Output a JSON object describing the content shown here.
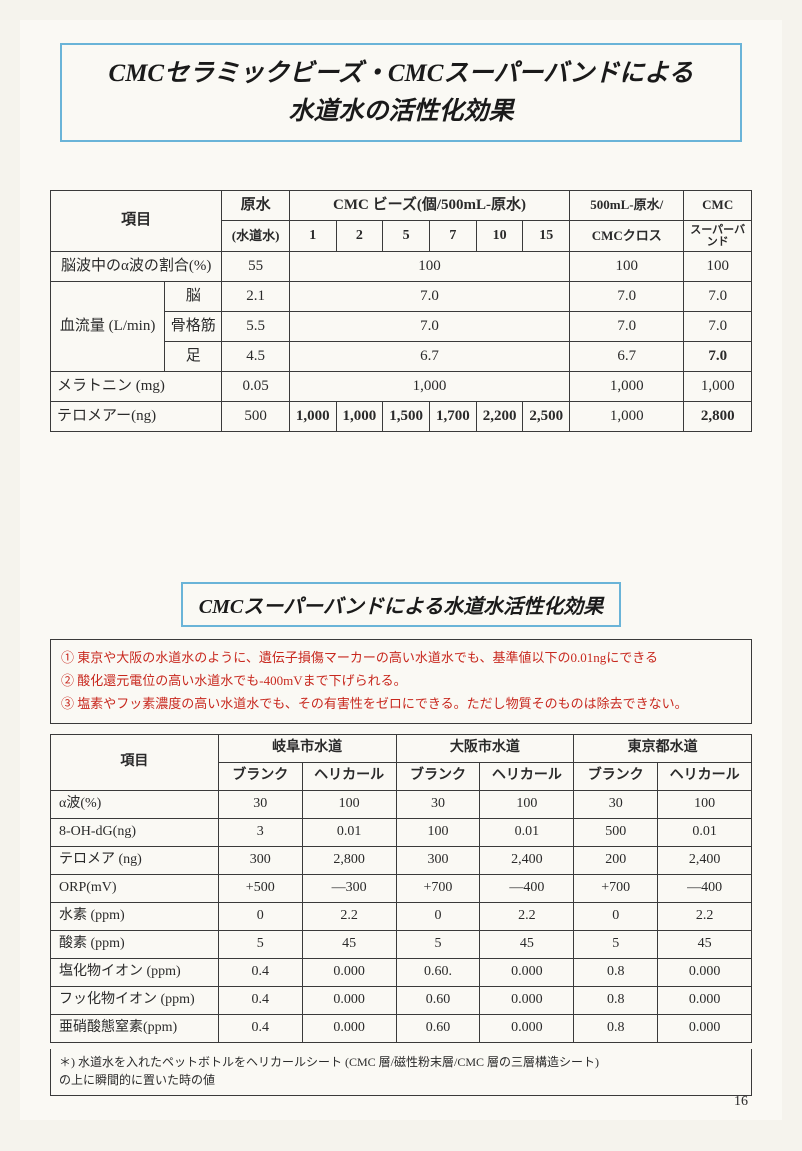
{
  "title": "CMCセラミックビーズ・CMCスーパーバンドによる\n水道水の活性化効果",
  "table1": {
    "headers": {
      "item": "項目",
      "raw": "原水",
      "raw_sub": "(水道水)",
      "beads": "CMC ビーズ(個/500mL-原水)",
      "bead_counts": [
        "1",
        "2",
        "5",
        "7",
        "10",
        "15"
      ],
      "cloth": "500mL-原水/",
      "cloth_sub": "CMCクロス",
      "band": "CMC",
      "band_sub": "スーパーバンド"
    },
    "rows": {
      "alpha": {
        "label": "脳波中のα波の割合(%)",
        "raw": "55",
        "beads_merged": "100",
        "cloth": "100",
        "band": "100"
      },
      "flow_label": "血流量 (L/min)",
      "flow_brain": {
        "sub": "脳",
        "raw": "2.1",
        "beads_merged": "7.0",
        "cloth": "7.0",
        "band": "7.0"
      },
      "flow_muscle": {
        "sub": "骨格筋",
        "raw": "5.5",
        "beads_merged": "7.0",
        "cloth": "7.0",
        "band": "7.0"
      },
      "flow_foot": {
        "sub": "足",
        "raw": "4.5",
        "beads_merged": "6.7",
        "cloth": "6.7",
        "band": "7.0"
      },
      "melatonin": {
        "label": "メラトニン (mg)",
        "raw": "0.05",
        "beads_merged": "1,000",
        "cloth": "1,000",
        "band": "1,000"
      },
      "telomere": {
        "label": "テロメアー(ng)",
        "raw": "500",
        "b1": "1,000",
        "b2": "1,000",
        "b5": "1,500",
        "b7": "1,700",
        "b10": "2,200",
        "b15": "2,500",
        "cloth": "1,000",
        "band": "2,800"
      }
    }
  },
  "subtitle": "CMCスーパーバンドによる水道水活性化効果",
  "notes": [
    "① 東京や大阪の水道水のように、遺伝子損傷マーカーの高い水道水でも、基準値以下の0.01ngにできる",
    "② 酸化還元電位の高い水道水でも-400mVまで下げられる。",
    "③ 塩素やフッ素濃度の高い水道水でも、その有害性をゼロにできる。ただし物質そのものは除去できない。"
  ],
  "table2": {
    "headers": {
      "item": "項目",
      "cities": [
        "岐阜市水道",
        "大阪市水道",
        "東京都水道"
      ],
      "sub": [
        "ブランク",
        "ヘリカール"
      ]
    },
    "rows": [
      {
        "label": "α波(%)",
        "v": [
          "30",
          "100",
          "30",
          "100",
          "30",
          "100"
        ]
      },
      {
        "label": "8-OH-dG(ng)",
        "v": [
          "3",
          "0.01",
          "100",
          "0.01",
          "500",
          "0.01"
        ]
      },
      {
        "label": "テロメア (ng)",
        "v": [
          "300",
          "2,800",
          "300",
          "2,400",
          "200",
          "2,400"
        ]
      },
      {
        "label": "ORP(mV)",
        "v": [
          "+500",
          "—300",
          "+700",
          "—400",
          "+700",
          "—400"
        ]
      },
      {
        "label": "水素 (ppm)",
        "v": [
          "0",
          "2.2",
          "0",
          "2.2",
          "0",
          "2.2"
        ]
      },
      {
        "label": "酸素 (ppm)",
        "v": [
          "5",
          "45",
          "5",
          "45",
          "5",
          "45"
        ]
      },
      {
        "label": "塩化物イオン (ppm)",
        "v": [
          "0.4",
          "0.000",
          "0.60.",
          "0.000",
          "0.8",
          "0.000"
        ]
      },
      {
        "label": "フッ化物イオン (ppm)",
        "v": [
          "0.4",
          "0.000",
          "0.60",
          "0.000",
          "0.8",
          "0.000"
        ]
      },
      {
        "label": "亜硝酸態窒素(ppm)",
        "v": [
          "0.4",
          "0.000",
          "0.60",
          "0.000",
          "0.8",
          "0.000"
        ]
      }
    ]
  },
  "footnote": "＊) 水道水を入れたペットボトルをヘリカールシート (CMC 層/磁性粉末層/CMC 層の三層構造シート)\nの上に瞬間的に置いた時の値",
  "pagenum": "16"
}
